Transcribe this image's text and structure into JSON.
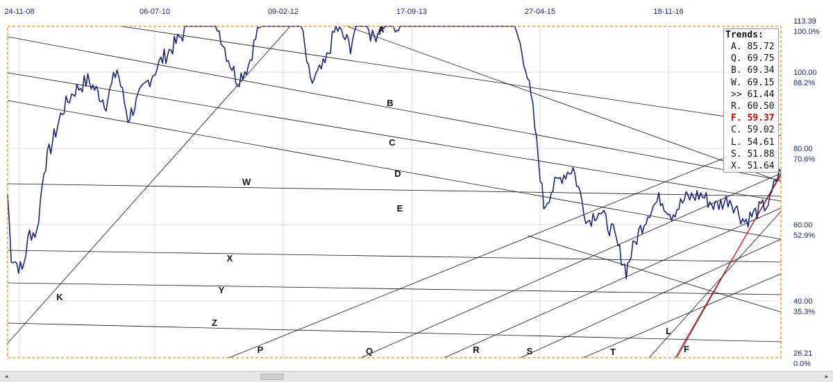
{
  "chart_data": {
    "type": "line",
    "x_tick_labels": [
      "24-11-08",
      "06-07-10",
      "09-02-12",
      "17-09-13",
      "27-04-15",
      "18-11-16"
    ],
    "y_price_labels": [
      "113.39",
      "100.00",
      "80.00",
      "60.00",
      "40.00",
      "26.21"
    ],
    "y_percent_labels": [
      "100.0%",
      "88.2%",
      "70.6%",
      "52.9%",
      "35.3%",
      "0.0%"
    ],
    "ylim": [
      26.21,
      113.39
    ],
    "price_series": {
      "x_start": "2008-11-24",
      "x_end": "2017-09-01",
      "anchors": [
        [
          0,
          48
        ],
        [
          0.5,
          32
        ],
        [
          2,
          28
        ],
        [
          3,
          38
        ],
        [
          4,
          38
        ],
        [
          5,
          55
        ],
        [
          7.5,
          70
        ],
        [
          9,
          75
        ],
        [
          11,
          78
        ],
        [
          13.5,
          72
        ],
        [
          15,
          81
        ],
        [
          16.5,
          68
        ],
        [
          19,
          77
        ],
        [
          21,
          83
        ],
        [
          24,
          90
        ],
        [
          25.5,
          108
        ],
        [
          26.5,
          104
        ],
        [
          28,
          97
        ],
        [
          30,
          85
        ],
        [
          31.5,
          78
        ],
        [
          33,
          82
        ],
        [
          35,
          96
        ],
        [
          37,
          102
        ],
        [
          38.5,
          100
        ],
        [
          40,
          95
        ],
        [
          41.5,
          77
        ],
        [
          43.5,
          82
        ],
        [
          45,
          92
        ],
        [
          47,
          87
        ],
        [
          48.5,
          98
        ],
        [
          50,
          89
        ],
        [
          52,
          94
        ],
        [
          53.8,
          91
        ],
        [
          56,
          105
        ],
        [
          58.5,
          99
        ],
        [
          61,
          94
        ],
        [
          63,
          96
        ],
        [
          64.5,
          104
        ],
        [
          66,
          102
        ],
        [
          67.5,
          107
        ],
        [
          69,
          96
        ],
        [
          71,
          82
        ],
        [
          72,
          70
        ],
        [
          73.5,
          45
        ],
        [
          74.5,
          49
        ],
        [
          76,
          53
        ],
        [
          77.5,
          55
        ],
        [
          79.5,
          41
        ],
        [
          81,
          44
        ],
        [
          83,
          38
        ],
        [
          84.8,
          28
        ],
        [
          85.2,
          31
        ],
        [
          86.5,
          38
        ],
        [
          88,
          44
        ],
        [
          89.5,
          47
        ],
        [
          91,
          43
        ],
        [
          93,
          47
        ],
        [
          95,
          48
        ],
        [
          97,
          45
        ],
        [
          99,
          47
        ],
        [
          101,
          41
        ],
        [
          103,
          44
        ],
        [
          104.5,
          46
        ],
        [
          105.3,
          52
        ],
        [
          106,
          54
        ]
      ]
    },
    "trend_lines": [
      {
        "label": "A",
        "value": 85.72
      },
      {
        "label": "Q",
        "value": 69.75
      },
      {
        "label": "B",
        "value": 69.34
      },
      {
        "label": "W",
        "value": 69.15
      },
      {
        "label": ">>",
        "value": 61.44
      },
      {
        "label": "R",
        "value": 60.5
      },
      {
        "label": "F",
        "value": 59.37
      },
      {
        "label": "C",
        "value": 59.02
      },
      {
        "label": "L",
        "value": 54.61
      },
      {
        "label": "S",
        "value": 51.88
      },
      {
        "label": "X",
        "value": 51.64
      }
    ],
    "line_labels": [
      "A",
      "B",
      "C",
      "D",
      "E",
      "W",
      "X",
      "Y",
      "Z",
      "K",
      "P",
      "Q",
      "R",
      "S",
      "T",
      "L",
      "F"
    ],
    "legend_placement": "top-right",
    "grid": true
  },
  "legend": {
    "title": "Trends:",
    "highlight_label": "F",
    "highlight_color": "#e00000"
  },
  "colors": {
    "price": "#1a237e",
    "trend_line": "#111111",
    "frame": "#f08a00",
    "grid": "#dcdcdc",
    "axis_text": "#1a237e"
  },
  "scrollbar": {
    "left_arrow": "◂",
    "right_arrow": "▸"
  }
}
